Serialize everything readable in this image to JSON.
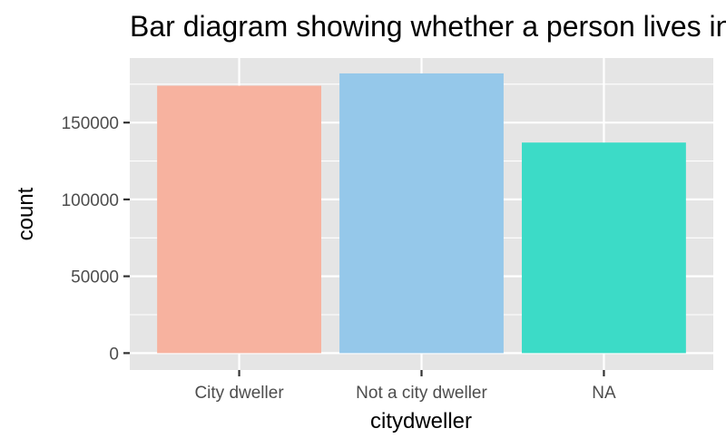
{
  "chart_data": {
    "type": "bar",
    "title": "Bar diagram showing whether a person lives in a city",
    "xlabel": "citydweller",
    "ylabel": "count",
    "categories": [
      "City dweller",
      "Not a city dweller",
      "NA"
    ],
    "values": [
      174000,
      182000,
      137000
    ],
    "colors": [
      "#F7B29F",
      "#95C8EA",
      "#3CDBC7"
    ],
    "ylim": [
      -11000,
      192000
    ],
    "yticks": [
      0,
      50000,
      100000,
      150000
    ],
    "ytick_labels": [
      "0",
      "50000",
      "100000",
      "150000"
    ],
    "grid": true,
    "legend": "none",
    "panel_background": "#E5E5E5",
    "gridline_color": "#FFFFFF"
  }
}
